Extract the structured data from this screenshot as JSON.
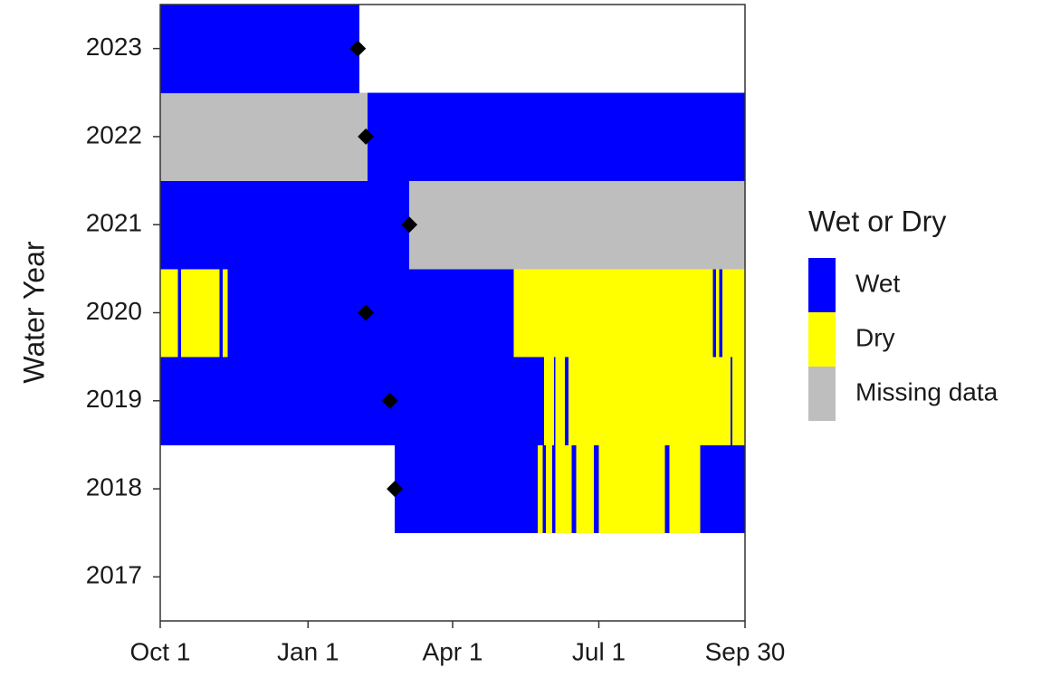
{
  "chart_data": {
    "type": "timeline",
    "y_label": "Water Year",
    "categories": [
      "2017",
      "2018",
      "2019",
      "2020",
      "2021",
      "2022",
      "2023"
    ],
    "xlim": [
      0,
      364
    ],
    "xticks": [
      {
        "value": 0,
        "label": "Oct 1"
      },
      {
        "value": 92,
        "label": "Jan 1"
      },
      {
        "value": 182,
        "label": "Apr 1"
      },
      {
        "value": 273,
        "label": "Jul 1"
      },
      {
        "value": 364,
        "label": "Sep 30"
      }
    ],
    "legend": {
      "title": "Wet or Dry",
      "items": [
        {
          "name": "Wet",
          "color": "#0000ff"
        },
        {
          "name": "Dry",
          "color": "#ffff00"
        },
        {
          "name": "Missing data",
          "color": "#bebebe"
        }
      ]
    },
    "segments": [
      [],
      [
        {
          "start": 146,
          "end": 235,
          "state": "Wet"
        },
        {
          "start": 235,
          "end": 238,
          "state": "Dry"
        },
        {
          "start": 238,
          "end": 240,
          "state": "Wet"
        },
        {
          "start": 240,
          "end": 244,
          "state": "Dry"
        },
        {
          "start": 244,
          "end": 246,
          "state": "Wet"
        },
        {
          "start": 246,
          "end": 256,
          "state": "Dry"
        },
        {
          "start": 256,
          "end": 259,
          "state": "Wet"
        },
        {
          "start": 259,
          "end": 270,
          "state": "Dry"
        },
        {
          "start": 270,
          "end": 273,
          "state": "Wet"
        },
        {
          "start": 273,
          "end": 314,
          "state": "Dry"
        },
        {
          "start": 314,
          "end": 317,
          "state": "Wet"
        },
        {
          "start": 317,
          "end": 336,
          "state": "Dry"
        },
        {
          "start": 336,
          "end": 364,
          "state": "Wet"
        }
      ],
      [
        {
          "start": 0,
          "end": 239,
          "state": "Wet"
        },
        {
          "start": 239,
          "end": 245,
          "state": "Dry"
        },
        {
          "start": 245,
          "end": 246,
          "state": "Wet"
        },
        {
          "start": 246,
          "end": 252,
          "state": "Dry"
        },
        {
          "start": 252,
          "end": 254,
          "state": "Wet"
        },
        {
          "start": 254,
          "end": 355,
          "state": "Dry"
        },
        {
          "start": 355,
          "end": 356,
          "state": "Wet"
        },
        {
          "start": 356,
          "end": 364,
          "state": "Dry"
        }
      ],
      [
        {
          "start": 0,
          "end": 11,
          "state": "Dry"
        },
        {
          "start": 11,
          "end": 13,
          "state": "Wet"
        },
        {
          "start": 13,
          "end": 37,
          "state": "Dry"
        },
        {
          "start": 37,
          "end": 39,
          "state": "Wet"
        },
        {
          "start": 39,
          "end": 42,
          "state": "Dry"
        },
        {
          "start": 42,
          "end": 220,
          "state": "Wet"
        },
        {
          "start": 220,
          "end": 344,
          "state": "Dry"
        },
        {
          "start": 344,
          "end": 346,
          "state": "Wet"
        },
        {
          "start": 346,
          "end": 348,
          "state": "Dry"
        },
        {
          "start": 348,
          "end": 350,
          "state": "Wet"
        },
        {
          "start": 350,
          "end": 364,
          "state": "Dry"
        }
      ],
      [
        {
          "start": 0,
          "end": 155,
          "state": "Wet"
        },
        {
          "start": 155,
          "end": 364,
          "state": "Missing data"
        }
      ],
      [
        {
          "start": 0,
          "end": 129,
          "state": "Missing data"
        },
        {
          "start": 129,
          "end": 364,
          "state": "Wet"
        }
      ],
      [
        {
          "start": 0,
          "end": 124,
          "state": "Wet"
        }
      ]
    ],
    "markers": [
      null,
      146,
      143,
      128,
      155,
      128,
      123
    ],
    "marker_color": "#000000"
  }
}
